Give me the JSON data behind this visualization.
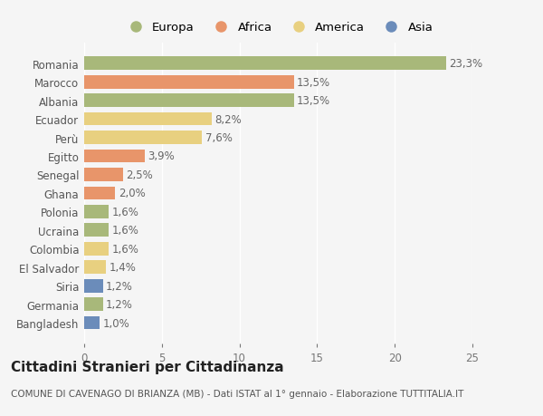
{
  "countries": [
    "Bangladesh",
    "Germania",
    "Siria",
    "El Salvador",
    "Colombia",
    "Ucraina",
    "Polonia",
    "Ghana",
    "Senegal",
    "Egitto",
    "Perù",
    "Ecuador",
    "Albania",
    "Marocco",
    "Romania"
  ],
  "values": [
    1.0,
    1.2,
    1.2,
    1.4,
    1.6,
    1.6,
    1.6,
    2.0,
    2.5,
    3.9,
    7.6,
    8.2,
    13.5,
    13.5,
    23.3
  ],
  "labels": [
    "1,0%",
    "1,2%",
    "1,2%",
    "1,4%",
    "1,6%",
    "1,6%",
    "1,6%",
    "2,0%",
    "2,5%",
    "3,9%",
    "7,6%",
    "8,2%",
    "13,5%",
    "13,5%",
    "23,3%"
  ],
  "colors": [
    "#6b8cba",
    "#a8b87a",
    "#6b8cba",
    "#e8d080",
    "#e8d080",
    "#a8b87a",
    "#a8b87a",
    "#e8956a",
    "#e8956a",
    "#e8956a",
    "#e8d080",
    "#e8d080",
    "#a8b87a",
    "#e8956a",
    "#a8b87a"
  ],
  "legend_labels": [
    "Europa",
    "Africa",
    "America",
    "Asia"
  ],
  "legend_colors": [
    "#a8b87a",
    "#e8956a",
    "#e8d080",
    "#6b8cba"
  ],
  "xlim": [
    0,
    25
  ],
  "xticks": [
    0,
    5,
    10,
    15,
    20,
    25
  ],
  "title": "Cittadini Stranieri per Cittadinanza",
  "subtitle": "COMUNE DI CAVENAGO DI BRIANZA (MB) - Dati ISTAT al 1° gennaio - Elaborazione TUTTITALIA.IT",
  "bg_color": "#f5f5f5",
  "bar_height": 0.72,
  "label_fontsize": 8.5,
  "tick_fontsize": 8.5,
  "legend_fontsize": 9.5,
  "title_fontsize": 11,
  "subtitle_fontsize": 7.5
}
